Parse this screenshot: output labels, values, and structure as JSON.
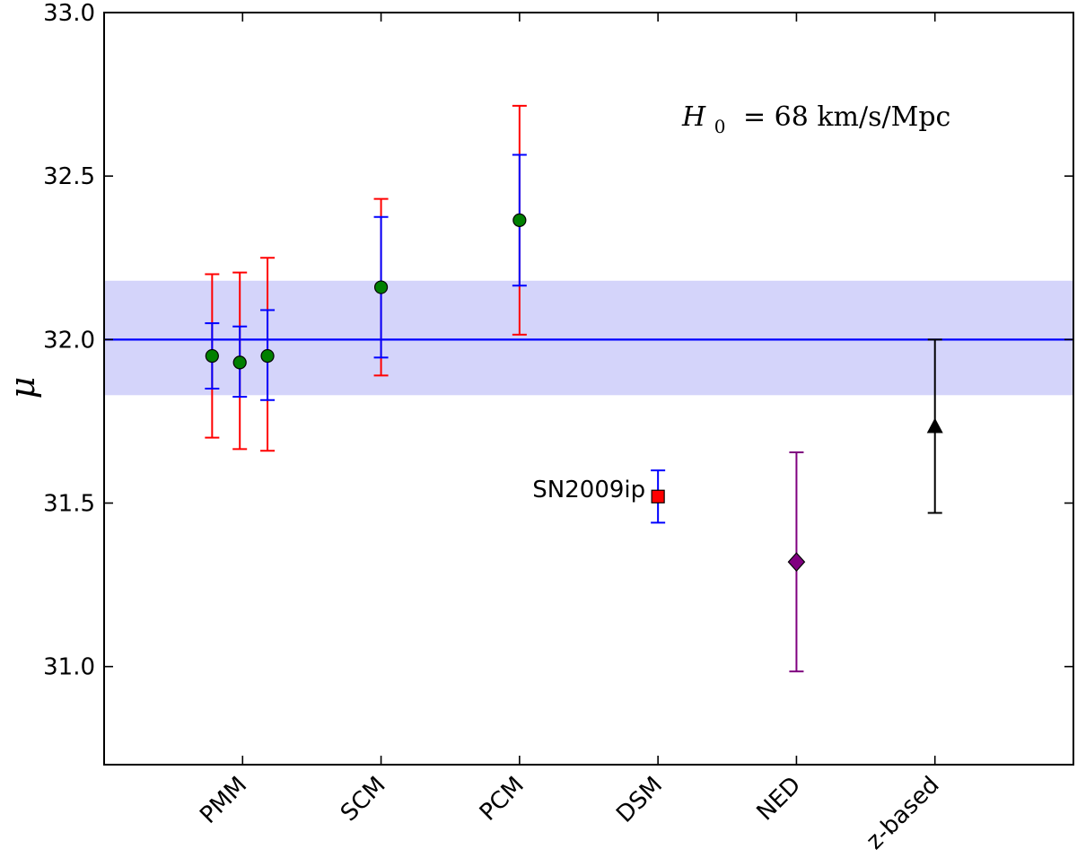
{
  "chart_data": {
    "type": "scatter",
    "ylabel": "μ",
    "ylim": [
      30.7,
      33.0
    ],
    "yticks": [
      31.0,
      31.5,
      32.0,
      32.5,
      33.0
    ],
    "ytick_labels": [
      "31.0",
      "31.5",
      "32.0",
      "32.5",
      "33.0"
    ],
    "xlim": [
      0,
      7
    ],
    "categories": [
      {
        "label": "PMM",
        "x": 1
      },
      {
        "label": "SCM",
        "x": 2
      },
      {
        "label": "PCM",
        "x": 3
      },
      {
        "label": "DSM",
        "x": 4
      },
      {
        "label": "NED",
        "x": 5
      },
      {
        "label": "z-based",
        "x": 6
      }
    ],
    "reference": {
      "value": 32.0,
      "band": [
        31.83,
        32.18
      ],
      "line_color": "#0000ff",
      "band_color": "#d4d4fa"
    },
    "annotation": {
      "h0_symbol": "H",
      "h0_subscript": "0",
      "h0_text": "= 68 km/s/Mpc"
    },
    "series": [
      {
        "name": "PMM-1",
        "x": 0.78,
        "y": 31.95,
        "err_red": [
          31.7,
          32.2
        ],
        "err_blue": [
          31.85,
          32.05
        ],
        "marker": "circle",
        "color": "#008000"
      },
      {
        "name": "PMM-2",
        "x": 0.98,
        "y": 31.93,
        "err_red": [
          31.665,
          32.205
        ],
        "err_blue": [
          31.825,
          32.04
        ],
        "marker": "circle",
        "color": "#008000"
      },
      {
        "name": "PMM-3",
        "x": 1.18,
        "y": 31.95,
        "err_red": [
          31.66,
          32.25
        ],
        "err_blue": [
          31.815,
          32.09
        ],
        "marker": "circle",
        "color": "#008000"
      },
      {
        "name": "SCM",
        "x": 2.0,
        "y": 32.16,
        "err_red": [
          31.89,
          32.43
        ],
        "err_blue": [
          31.945,
          32.375
        ],
        "marker": "circle",
        "color": "#008000"
      },
      {
        "name": "PCM",
        "x": 3.0,
        "y": 32.365,
        "err_red": [
          32.015,
          32.715
        ],
        "err_blue": [
          32.165,
          32.565
        ],
        "marker": "circle",
        "color": "#008000"
      },
      {
        "name": "SN2009ip",
        "x": 4.0,
        "y": 31.52,
        "err_blue": [
          31.44,
          31.6
        ],
        "marker": "square",
        "color": "#ff0000",
        "label": "SN2009ip"
      },
      {
        "name": "NED",
        "x": 5.0,
        "y": 31.32,
        "err_purple": [
          30.985,
          31.655
        ],
        "marker": "diamond",
        "color": "#800080"
      },
      {
        "name": "z-based",
        "x": 6.0,
        "y": 31.735,
        "err_black": [
          31.47,
          32.0
        ],
        "marker": "triangle",
        "color": "#000000"
      }
    ]
  }
}
